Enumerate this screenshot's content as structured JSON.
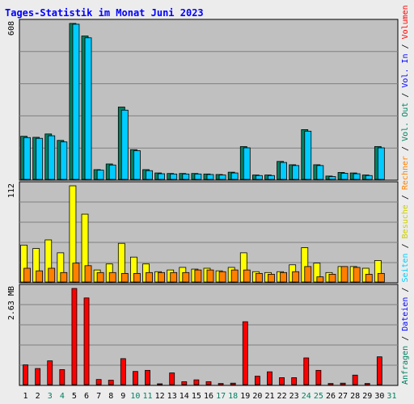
{
  "chart_data": {
    "title": "Tages-Statistik im Monat Juni 2023",
    "type": "bar",
    "days": [
      "1",
      "2",
      "3",
      "4",
      "5",
      "6",
      "7",
      "8",
      "9",
      "10",
      "11",
      "12",
      "13",
      "14",
      "15",
      "16",
      "17",
      "18",
      "19",
      "20",
      "21",
      "22",
      "23",
      "24",
      "25",
      "26",
      "27",
      "28",
      "29",
      "30",
      "31"
    ],
    "weekend_days": [
      "3",
      "4",
      "10",
      "11",
      "17",
      "18",
      "24",
      "25",
      "31"
    ],
    "panels": [
      {
        "id": "hits",
        "ymax_label": "608",
        "ymax": 608,
        "series": [
          {
            "name": "Anfragen",
            "color": "#008060",
            "values": [
              168,
              164,
              177,
              152,
              608,
              559,
              38,
              60,
              282,
              116,
              38,
              25,
              23,
              23,
              23,
              21,
              19,
              28,
              128,
              17,
              17,
              70,
              57,
              194,
              57,
              13,
              27,
              25,
              17,
              128,
              0
            ]
          },
          {
            "name": "Dateien",
            "color": "#00ccff",
            "values": [
              163,
              160,
              170,
              146,
              605,
              552,
              36,
              56,
              270,
              112,
              34,
              22,
              21,
              21,
              21,
              19,
              17,
              25,
              123,
              15,
              15,
              66,
              54,
              188,
              54,
              11,
              24,
              22,
              15,
              123,
              0
            ]
          }
        ]
      },
      {
        "id": "visits",
        "ymax_label": "112",
        "ymax": 112,
        "series": [
          {
            "name": "Besuche",
            "color": "#ffff00",
            "values": [
              43,
              39,
              49,
              34,
              112,
              79,
              14,
              21,
              45,
              29,
              21,
              12,
              14,
              17,
              15,
              16,
              13,
              17,
              34,
              12,
              11,
              12,
              20,
              40,
              22,
              11,
              18,
              18,
              16,
              25,
              0
            ]
          },
          {
            "name": "Rechner",
            "color": "#ff8000",
            "values": [
              16,
              13,
              16,
              11,
              22,
              19,
              11,
              11,
              10,
              10,
              11,
              11,
              11,
              11,
              14,
              14,
              12,
              14,
              14,
              10,
              9,
              11,
              12,
              18,
              6,
              9,
              18,
              17,
              9,
              10,
              0
            ]
          }
        ]
      },
      {
        "id": "volume",
        "ymax_label": "2.63 MB",
        "ymax": 2.63,
        "series": [
          {
            "name": "Volumen",
            "color": "#ff0000",
            "values": [
              0.54,
              0.44,
              0.65,
              0.41,
              2.63,
              2.37,
              0.14,
              0.12,
              0.71,
              0.36,
              0.39,
              0.02,
              0.32,
              0.08,
              0.13,
              0.08,
              0.03,
              0.04,
              1.72,
              0.23,
              0.35,
              0.19,
              0.19,
              0.73,
              0.39,
              0.03,
              0.04,
              0.26,
              0.03,
              0.76,
              0
            ]
          }
        ]
      }
    ],
    "right_legend": [
      {
        "text": "Anfragen",
        "color": "#008060"
      },
      {
        "text": "/",
        "color": "#000000"
      },
      {
        "text": "Dateien",
        "color": "#0000ff"
      },
      {
        "text": "/",
        "color": "#000000"
      },
      {
        "text": "Seiten",
        "color": "#00ccff"
      },
      {
        "text": "/",
        "color": "#000000"
      },
      {
        "text": "Besuche",
        "color": "#cccc00"
      },
      {
        "text": "/",
        "color": "#000000"
      },
      {
        "text": "Rechner",
        "color": "#ff8000"
      },
      {
        "text": "/",
        "color": "#000000"
      },
      {
        "text": "Vol. Out",
        "color": "#008060"
      },
      {
        "text": "/",
        "color": "#000000"
      },
      {
        "text": "Vol. In",
        "color": "#0000ff"
      },
      {
        "text": "/",
        "color": "#000000"
      },
      {
        "text": "Volumen",
        "color": "#ff0000"
      }
    ],
    "colors": {
      "background": "#ececec",
      "plot_bg": "#c0c0c0",
      "title": "#0000ff",
      "weekday_label": "#000000",
      "weekend_label": "#008060",
      "grid": "#808080"
    },
    "grid": true
  }
}
